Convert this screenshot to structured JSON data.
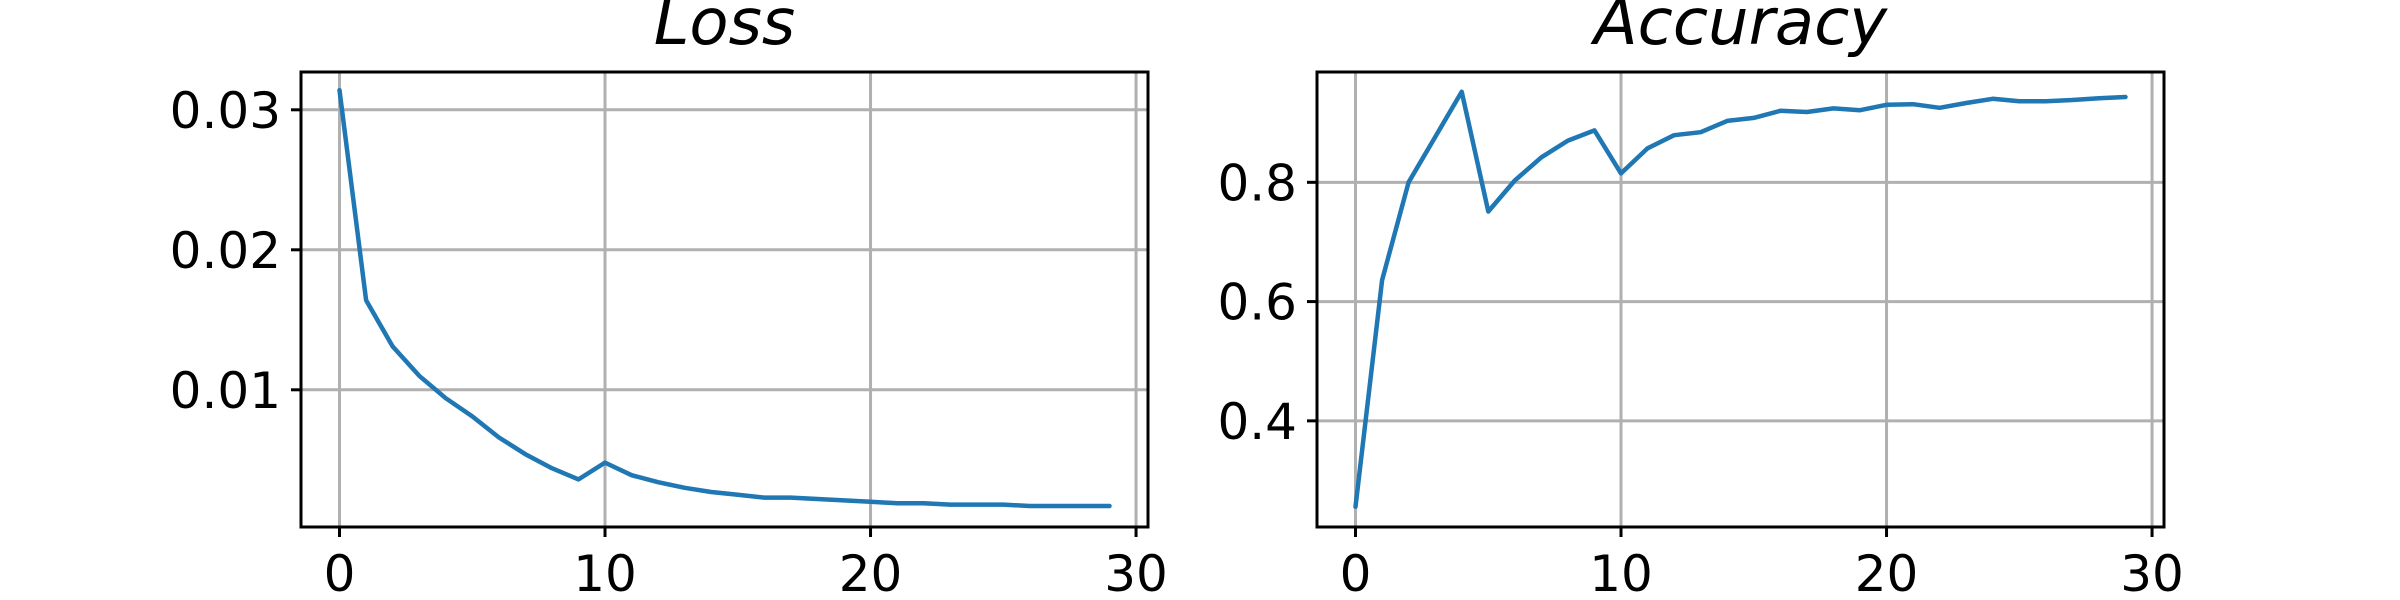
{
  "chart_data": [
    {
      "type": "line",
      "title": "Loss",
      "xlabel": "",
      "ylabel": "",
      "xlim": [
        -1.45,
        30.45
      ],
      "ylim": [
        0.0002,
        0.0327
      ],
      "xticks": [
        0,
        10,
        20,
        30
      ],
      "xtick_labels": [
        "0",
        "10",
        "20",
        "30"
      ],
      "yticks": [
        0.01,
        0.02,
        0.03
      ],
      "ytick_labels": [
        "0.01",
        "0.02",
        "0.03"
      ],
      "grid": true,
      "color": "#1f77b4",
      "series": [
        {
          "x": [
            0,
            1,
            2,
            3,
            4,
            5,
            6,
            7,
            8,
            9,
            10,
            11,
            12,
            13,
            14,
            15,
            16,
            17,
            18,
            19,
            20,
            21,
            22,
            23,
            24,
            25,
            26,
            27,
            28,
            29
          ],
          "values": [
            0.0314,
            0.0164,
            0.0131,
            0.011,
            0.0094,
            0.0081,
            0.0066,
            0.0054,
            0.0044,
            0.0036,
            0.0048,
            0.0039,
            0.0034,
            0.003,
            0.0027,
            0.0025,
            0.0023,
            0.0023,
            0.0022,
            0.0021,
            0.002,
            0.0019,
            0.0019,
            0.0018,
            0.0018,
            0.0018,
            0.0017,
            0.0017,
            0.0017,
            0.0017
          ]
        }
      ]
    },
    {
      "type": "line",
      "title": "Accuracy",
      "xlabel": "",
      "ylabel": "",
      "xlim": [
        -1.45,
        30.45
      ],
      "ylim": [
        0.222,
        0.985
      ],
      "xticks": [
        0,
        10,
        20,
        30
      ],
      "xtick_labels": [
        "0",
        "10",
        "20",
        "30"
      ],
      "yticks": [
        0.4,
        0.6,
        0.8
      ],
      "ytick_labels": [
        "0.4",
        "0.6",
        "0.8"
      ],
      "grid": true,
      "color": "#1f77b4",
      "series": [
        {
          "x": [
            0,
            1,
            2,
            3,
            4,
            5,
            6,
            7,
            8,
            9,
            10,
            11,
            12,
            13,
            14,
            15,
            16,
            17,
            18,
            19,
            20,
            21,
            22,
            23,
            24,
            25,
            26,
            27,
            28,
            29
          ],
          "values": [
            0.256,
            0.636,
            0.8,
            0.876,
            0.952,
            0.751,
            0.803,
            0.842,
            0.87,
            0.887,
            0.815,
            0.857,
            0.879,
            0.884,
            0.903,
            0.908,
            0.92,
            0.918,
            0.924,
            0.921,
            0.93,
            0.931,
            0.925,
            0.933,
            0.94,
            0.936,
            0.936,
            0.938,
            0.941,
            0.943
          ]
        }
      ]
    }
  ]
}
